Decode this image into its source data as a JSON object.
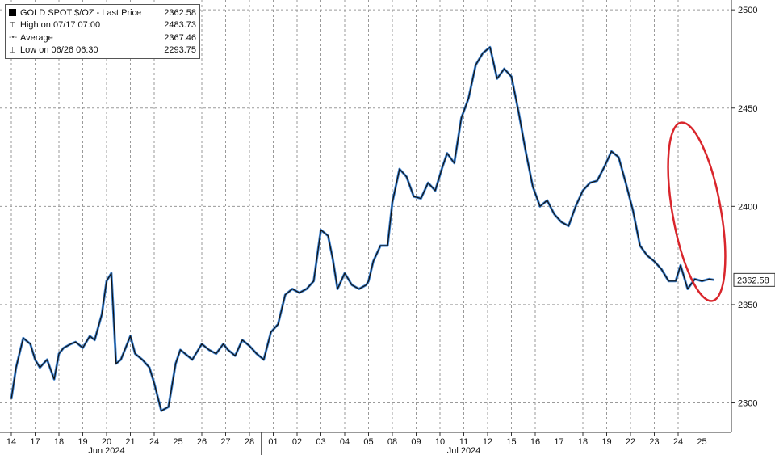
{
  "chart_data": {
    "type": "line",
    "title": "GOLD SPOT $/OZ - Last Price",
    "ylim": [
      2285,
      2505
    ],
    "y_ticks": [
      2300,
      2350,
      2400,
      2450,
      2500
    ],
    "last_price_label": "2362.58",
    "x_tick_labels": [
      "14",
      "17",
      "18",
      "19",
      "20",
      "21",
      "24",
      "25",
      "26",
      "27",
      "28",
      "01",
      "02",
      "03",
      "04",
      "05",
      "08",
      "09",
      "10",
      "11",
      "12",
      "15",
      "16",
      "17",
      "18",
      "19",
      "22",
      "23",
      "24",
      "25"
    ],
    "month_labels": [
      {
        "text": "Jun 2024",
        "at_tick": 4
      },
      {
        "text": "Jul 2024",
        "at_tick": 19
      }
    ],
    "grid": true,
    "legend_position": "top-left",
    "legend": [
      {
        "symbol": "box",
        "label": "GOLD SPOT $/OZ - Last Price",
        "value": "2362.58"
      },
      {
        "symbol": "high",
        "label": "High on 07/17 07:00",
        "value": "2483.73"
      },
      {
        "symbol": "avg",
        "label": "Average",
        "value": "2367.46"
      },
      {
        "symbol": "low",
        "label": "Low on 06/26 06:30",
        "value": "2293.75"
      }
    ],
    "series": [
      {
        "x": [
          0,
          0.2,
          0.5,
          0.8,
          1.0,
          1.2,
          1.5,
          1.8,
          2.0,
          2.2,
          2.5,
          2.7,
          3.0,
          3.3,
          3.5,
          3.8,
          4.0,
          4.2,
          4.4,
          4.6,
          4.8,
          5.0,
          5.2,
          5.5,
          5.8,
          6.0,
          6.3,
          6.6,
          6.9,
          7.1,
          7.3,
          7.6,
          8.0,
          8.3,
          8.6,
          8.9,
          9.1,
          9.4,
          9.7,
          10.0,
          10.3,
          10.6,
          10.9,
          11.2,
          11.5,
          11.8,
          12.1,
          12.4,
          12.7,
          13.0,
          13.3,
          13.5,
          13.7,
          14.0,
          14.3,
          14.6,
          14.9,
          15.0,
          15.2,
          15.5,
          15.8,
          16.0,
          16.3,
          16.6,
          16.9,
          17.2,
          17.5,
          17.8,
          18.1,
          18.3,
          18.6,
          18.9,
          19.2,
          19.5,
          19.8,
          20.1,
          20.4,
          20.7,
          21.0,
          21.3,
          21.6,
          21.9,
          22.2,
          22.5,
          22.8,
          23.1,
          23.4,
          23.7,
          24.0,
          24.3,
          24.6,
          24.9,
          25.2,
          25.5,
          25.8,
          26.1,
          26.4,
          26.7,
          27.0,
          27.3,
          27.6,
          27.9,
          28.1,
          28.4,
          28.7,
          29.0,
          29.3,
          29.5
        ],
        "values": [
          2302,
          2318,
          2333,
          2330,
          2322,
          2318,
          2322,
          2312,
          2325,
          2328,
          2330,
          2331,
          2328,
          2334,
          2332,
          2345,
          2362,
          2366,
          2320,
          2322,
          2328,
          2334,
          2325,
          2322,
          2318,
          2310,
          2296,
          2298,
          2320,
          2327,
          2325,
          2322,
          2330,
          2327,
          2325,
          2330,
          2327,
          2324,
          2332,
          2329,
          2325,
          2322,
          2336,
          2340,
          2355,
          2358,
          2356,
          2358,
          2362,
          2388,
          2385,
          2373,
          2358,
          2366,
          2360,
          2358,
          2360,
          2362,
          2372,
          2380,
          2380,
          2402,
          2419,
          2415,
          2405,
          2404,
          2412,
          2408,
          2420,
          2427,
          2422,
          2445,
          2455,
          2472,
          2478,
          2481,
          2465,
          2470,
          2466,
          2448,
          2428,
          2410,
          2400,
          2403,
          2396,
          2392,
          2390,
          2400,
          2408,
          2412,
          2413,
          2420,
          2428,
          2425,
          2412,
          2398,
          2380,
          2375,
          2372,
          2368,
          2362,
          2362,
          2370,
          2358,
          2363,
          2362,
          2363,
          2362.58
        ]
      }
    ]
  }
}
